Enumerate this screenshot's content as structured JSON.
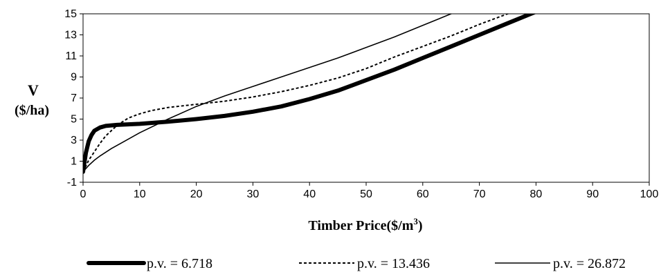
{
  "chart_data": {
    "type": "line",
    "title": "",
    "xlabel": "Timber Price($/m",
    "xlabel_sup": "3",
    "xlabel_close": ")",
    "ylabel_line1": "V",
    "ylabel_line2": "($/ha)",
    "xlim": [
      0,
      100
    ],
    "ylim": [
      -1,
      15
    ],
    "xticks": [
      0,
      10,
      20,
      30,
      40,
      50,
      60,
      70,
      80,
      90,
      100
    ],
    "yticks": [
      -1,
      1,
      3,
      5,
      7,
      9,
      11,
      13,
      15
    ],
    "grid": false,
    "legend_position": "bottom",
    "series": [
      {
        "name": "p.v. = 6.718",
        "style": "thick-solid",
        "x": [
          0,
          0.5,
          1,
          1.5,
          2,
          3,
          4,
          6,
          8,
          10,
          15,
          20,
          25,
          30,
          35,
          40,
          45,
          50,
          55,
          60,
          65,
          70,
          75,
          80,
          83
        ],
        "y": [
          0,
          1.8,
          2.9,
          3.5,
          3.9,
          4.2,
          4.35,
          4.45,
          4.5,
          4.55,
          4.75,
          5.0,
          5.3,
          5.7,
          6.2,
          6.9,
          7.7,
          8.7,
          9.7,
          10.8,
          11.9,
          13.0,
          14.1,
          15.2,
          15.8
        ]
      },
      {
        "name": "p.v. = 13.436",
        "style": "dashed",
        "x": [
          0,
          1,
          2,
          3,
          4,
          6,
          8,
          10,
          12,
          15,
          20,
          25,
          30,
          35,
          40,
          45,
          50,
          55,
          60,
          65,
          70,
          75,
          78
        ],
        "y": [
          0,
          1.1,
          1.9,
          2.7,
          3.4,
          4.4,
          5.1,
          5.5,
          5.8,
          6.1,
          6.4,
          6.7,
          7.1,
          7.6,
          8.2,
          8.9,
          9.8,
          10.9,
          11.9,
          12.9,
          14.0,
          15.0,
          15.6
        ]
      },
      {
        "name": "p.v. = 26.872",
        "style": "thin-solid",
        "x": [
          0,
          1,
          2,
          3,
          5,
          7,
          10,
          15,
          20,
          25,
          30,
          35,
          40,
          45,
          50,
          55,
          60,
          65,
          69
        ],
        "y": [
          0,
          0.6,
          1.1,
          1.5,
          2.2,
          2.8,
          3.7,
          5.0,
          6.2,
          7.2,
          8.1,
          9.0,
          9.9,
          10.8,
          11.8,
          12.8,
          13.9,
          15.0,
          15.7
        ]
      }
    ]
  }
}
